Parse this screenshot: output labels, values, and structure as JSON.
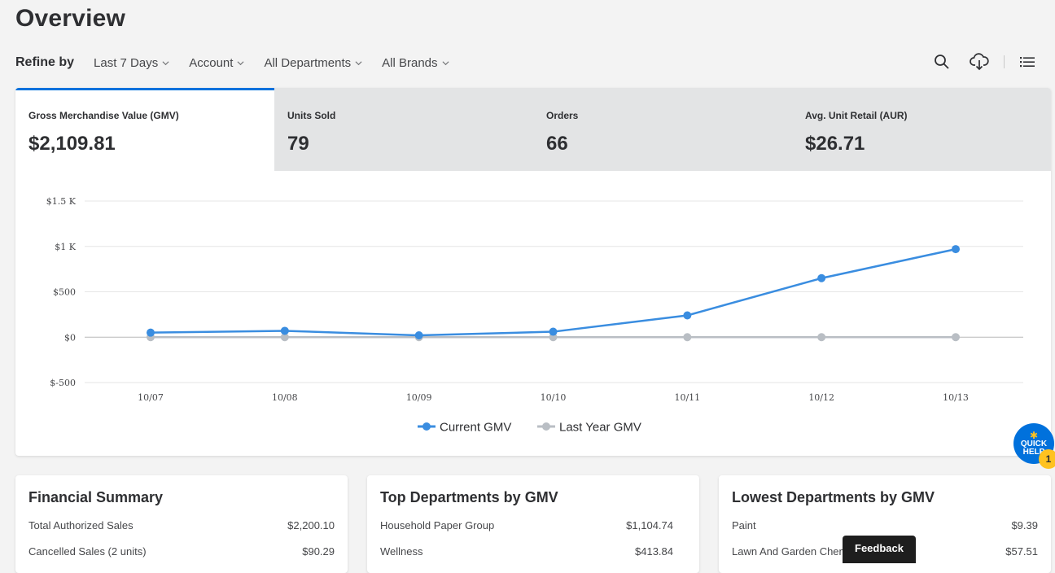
{
  "page": {
    "title": "Overview"
  },
  "refine": {
    "label": "Refine by",
    "filters": [
      "Last 7 Days",
      "Account",
      "All Departments",
      "All Brands"
    ]
  },
  "toolbar": {
    "icons": [
      "search-icon",
      "cloud-download-icon",
      "list-icon"
    ]
  },
  "kpis": [
    {
      "label": "Gross Merchandise Value (GMV)",
      "value": "$2,109.81"
    },
    {
      "label": "Units Sold",
      "value": "79"
    },
    {
      "label": "Orders",
      "value": "66"
    },
    {
      "label": "Avg. Unit Retail (AUR)",
      "value": "$26.71"
    }
  ],
  "chart_data": {
    "type": "line",
    "x": [
      "10/07",
      "10/08",
      "10/09",
      "10/10",
      "10/11",
      "10/12",
      "10/13"
    ],
    "ylim": [
      -500,
      1500
    ],
    "yticks": [
      1500,
      1000,
      500,
      0,
      -500
    ],
    "ytick_labels": [
      "$1.5 K",
      "$1 K",
      "$500",
      "$0",
      "$-500"
    ],
    "series": [
      {
        "name": "Current GMV",
        "color": "#3a8de0",
        "values": [
          50,
          70,
          20,
          60,
          240,
          650,
          970
        ]
      },
      {
        "name": "Last Year GMV",
        "color": "#b9bec4",
        "values": [
          0,
          0,
          0,
          0,
          0,
          0,
          0
        ]
      }
    ],
    "legend": "bottom-center",
    "grid": true
  },
  "financial": {
    "title": "Financial Summary",
    "rows": [
      {
        "label": "Total Authorized Sales",
        "value": "$2,200.10"
      },
      {
        "label": "Cancelled Sales (2 units)",
        "value": "$90.29"
      }
    ]
  },
  "top_departments": {
    "title": "Top Departments by GMV",
    "rows": [
      {
        "label": "Household Paper Group",
        "value": "$1,104.74"
      },
      {
        "label": "Wellness",
        "value": "$413.84"
      }
    ]
  },
  "lowest_departments": {
    "title": "Lowest Departments by GMV",
    "rows": [
      {
        "label": "Paint",
        "value": "$9.39"
      },
      {
        "label": "Lawn And Garden Chemicals",
        "value": "$57.51"
      }
    ]
  },
  "quick_help": {
    "line1": "QUICK",
    "line2": "HELP",
    "badge": "1"
  },
  "feedback": {
    "label": "Feedback"
  }
}
